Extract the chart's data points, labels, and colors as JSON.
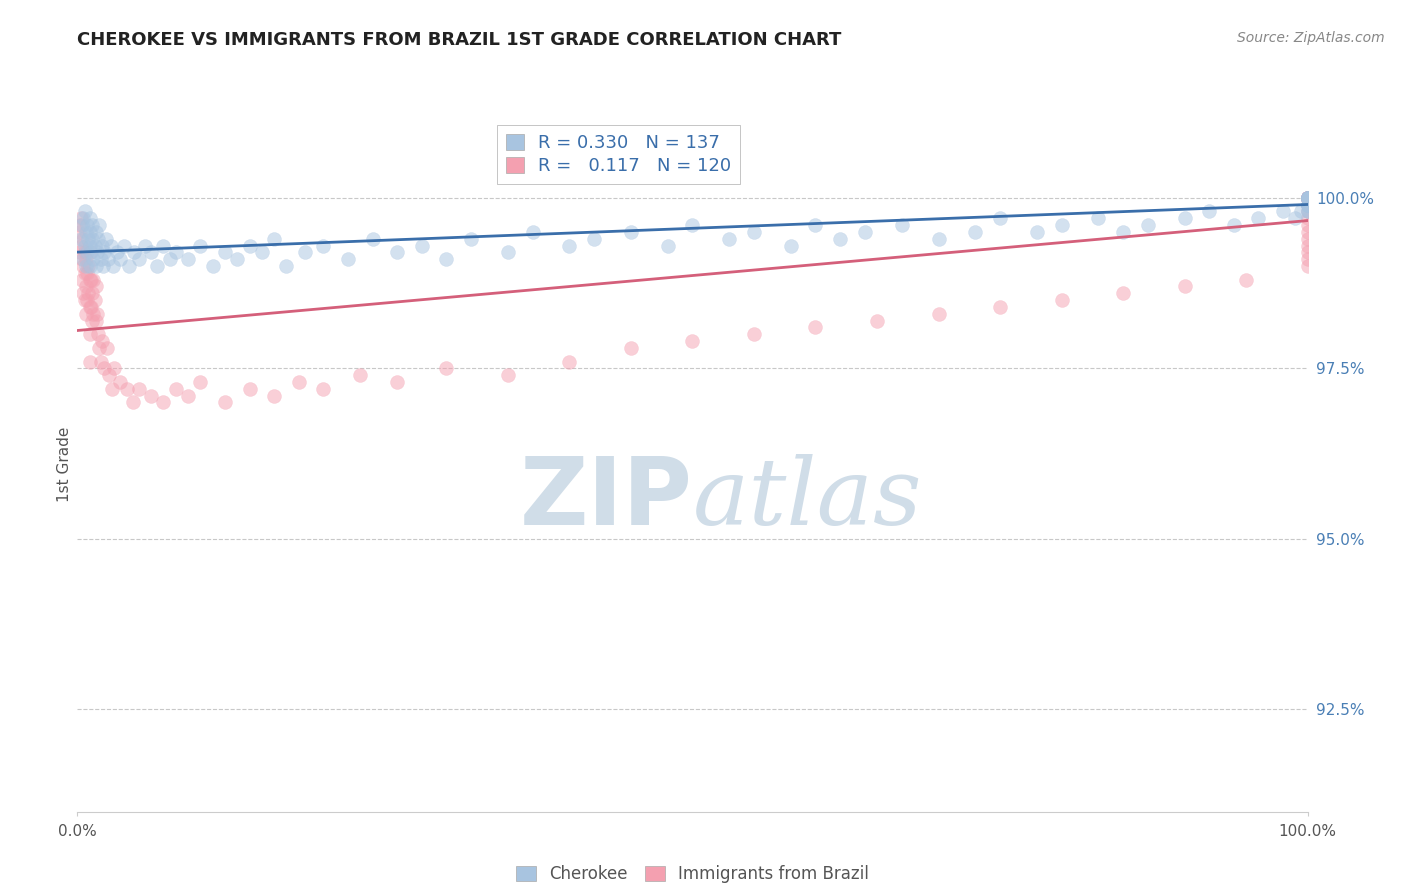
{
  "title": "CHEROKEE VS IMMIGRANTS FROM BRAZIL 1ST GRADE CORRELATION CHART",
  "source_text": "Source: ZipAtlas.com",
  "ylabel": "1st Grade",
  "y_ticks": [
    92.5,
    95.0,
    97.5,
    100.0
  ],
  "y_tick_labels": [
    "92.5%",
    "95.0%",
    "97.5%",
    "100.0%"
  ],
  "x_range": [
    0.0,
    100.0
  ],
  "y_range": [
    91.0,
    101.2
  ],
  "blue_scatter_color": "#a8c4e0",
  "pink_scatter_color": "#f4a0b0",
  "blue_line_color": "#3a6eaa",
  "pink_line_color": "#d45f7a",
  "watermark_zip": "ZIP",
  "watermark_atlas": "atlas",
  "watermark_color": "#d0dde8",
  "background_color": "#ffffff",
  "grid_color": "#c8c8c8",
  "title_color": "#222222",
  "source_color": "#888888",
  "tick_color": "#555555",
  "right_tick_color": "#4a7fb5",
  "marker_size": 100,
  "marker_alpha": 0.5,
  "R_blue": 0.33,
  "N_blue": 137,
  "R_pink": 0.117,
  "N_pink": 120,
  "blue_label": "Cherokee",
  "pink_label": "Immigrants from Brazil",
  "blue_x": [
    0.3,
    0.4,
    0.5,
    0.5,
    0.6,
    0.6,
    0.7,
    0.7,
    0.8,
    0.8,
    0.9,
    1.0,
    1.0,
    1.0,
    1.0,
    1.1,
    1.2,
    1.2,
    1.3,
    1.4,
    1.5,
    1.5,
    1.6,
    1.7,
    1.8,
    1.9,
    2.0,
    2.1,
    2.2,
    2.3,
    2.5,
    2.7,
    2.9,
    3.2,
    3.5,
    3.8,
    4.2,
    4.6,
    5.0,
    5.5,
    6.0,
    6.5,
    7.0,
    7.5,
    8.0,
    9.0,
    10.0,
    11.0,
    12.0,
    13.0,
    14.0,
    15.0,
    16.0,
    17.0,
    18.5,
    20.0,
    22.0,
    24.0,
    26.0,
    28.0,
    30.0,
    32.0,
    35.0,
    37.0,
    40.0,
    42.0,
    45.0,
    48.0,
    50.0,
    53.0,
    55.0,
    58.0,
    60.0,
    62.0,
    64.0,
    67.0,
    70.0,
    73.0,
    75.0,
    78.0,
    80.0,
    83.0,
    85.0,
    87.0,
    90.0,
    92.0,
    94.0,
    96.0,
    98.0,
    99.0,
    99.5,
    100.0,
    100.0,
    100.0,
    100.0,
    100.0,
    100.0,
    100.0,
    100.0,
    100.0,
    100.0,
    100.0,
    100.0,
    100.0,
    100.0,
    100.0,
    100.0,
    100.0,
    100.0,
    100.0,
    100.0,
    100.0,
    100.0,
    100.0,
    100.0,
    100.0,
    100.0,
    100.0,
    100.0,
    100.0,
    100.0,
    100.0,
    100.0,
    100.0,
    100.0,
    100.0,
    100.0,
    100.0,
    100.0,
    100.0,
    100.0,
    100.0,
    100.0,
    100.0,
    100.0,
    100.0,
    100.0
  ],
  "blue_y": [
    99.4,
    99.6,
    99.1,
    99.7,
    99.3,
    99.8,
    99.0,
    99.5,
    99.2,
    99.6,
    99.4,
    99.0,
    99.3,
    99.5,
    99.7,
    99.2,
    99.4,
    99.6,
    99.1,
    99.3,
    99.5,
    99.0,
    99.2,
    99.4,
    99.6,
    99.1,
    99.3,
    99.0,
    99.2,
    99.4,
    99.1,
    99.3,
    99.0,
    99.2,
    99.1,
    99.3,
    99.0,
    99.2,
    99.1,
    99.3,
    99.2,
    99.0,
    99.3,
    99.1,
    99.2,
    99.1,
    99.3,
    99.0,
    99.2,
    99.1,
    99.3,
    99.2,
    99.4,
    99.0,
    99.2,
    99.3,
    99.1,
    99.4,
    99.2,
    99.3,
    99.1,
    99.4,
    99.2,
    99.5,
    99.3,
    99.4,
    99.5,
    99.3,
    99.6,
    99.4,
    99.5,
    99.3,
    99.6,
    99.4,
    99.5,
    99.6,
    99.4,
    99.5,
    99.7,
    99.5,
    99.6,
    99.7,
    99.5,
    99.6,
    99.7,
    99.8,
    99.6,
    99.7,
    99.8,
    99.7,
    99.8,
    99.9,
    100.0,
    99.9,
    100.0,
    99.8,
    100.0,
    99.9,
    100.0,
    99.8,
    100.0,
    100.0,
    99.9,
    100.0,
    100.0,
    99.9,
    100.0,
    100.0,
    99.9,
    100.0,
    100.0,
    100.0,
    100.0,
    100.0,
    100.0,
    100.0,
    100.0,
    100.0,
    100.0,
    100.0,
    100.0,
    100.0,
    100.0,
    100.0,
    100.0,
    100.0,
    100.0,
    100.0,
    100.0,
    100.0,
    100.0,
    100.0,
    100.0,
    100.0,
    100.0,
    100.0,
    100.0
  ],
  "pink_x": [
    0.1,
    0.2,
    0.2,
    0.3,
    0.3,
    0.4,
    0.4,
    0.5,
    0.5,
    0.5,
    0.6,
    0.6,
    0.6,
    0.7,
    0.7,
    0.7,
    0.8,
    0.8,
    0.9,
    0.9,
    1.0,
    1.0,
    1.0,
    1.0,
    1.0,
    1.1,
    1.1,
    1.2,
    1.2,
    1.3,
    1.3,
    1.4,
    1.5,
    1.5,
    1.6,
    1.7,
    1.8,
    1.9,
    2.0,
    2.2,
    2.4,
    2.6,
    2.8,
    3.0,
    3.5,
    4.0,
    4.5,
    5.0,
    6.0,
    7.0,
    8.0,
    9.0,
    10.0,
    12.0,
    14.0,
    16.0,
    18.0,
    20.0,
    23.0,
    26.0,
    30.0,
    35.0,
    40.0,
    45.0,
    50.0,
    55.0,
    60.0,
    65.0,
    70.0,
    75.0,
    80.0,
    85.0,
    90.0,
    95.0,
    100.0,
    100.0,
    100.0,
    100.0,
    100.0,
    100.0,
    100.0,
    100.0,
    100.0,
    100.0,
    100.0,
    100.0,
    100.0,
    100.0,
    100.0,
    100.0,
    100.0,
    100.0,
    100.0,
    100.0,
    100.0,
    100.0,
    100.0,
    100.0,
    100.0,
    100.0,
    100.0,
    100.0,
    100.0,
    100.0,
    100.0,
    100.0,
    100.0,
    100.0,
    100.0,
    100.0,
    100.0,
    100.0,
    100.0,
    100.0,
    100.0,
    100.0,
    100.0,
    100.0,
    100.0,
    100.0
  ],
  "pink_y": [
    99.5,
    99.6,
    99.2,
    99.7,
    99.3,
    99.1,
    98.8,
    99.4,
    99.0,
    98.6,
    99.2,
    98.9,
    98.5,
    99.1,
    98.7,
    98.3,
    98.9,
    98.5,
    99.0,
    98.6,
    99.2,
    98.8,
    98.4,
    98.0,
    97.6,
    98.8,
    98.4,
    98.6,
    98.2,
    98.8,
    98.3,
    98.5,
    98.7,
    98.2,
    98.3,
    98.0,
    97.8,
    97.6,
    97.9,
    97.5,
    97.8,
    97.4,
    97.2,
    97.5,
    97.3,
    97.2,
    97.0,
    97.2,
    97.1,
    97.0,
    97.2,
    97.1,
    97.3,
    97.0,
    97.2,
    97.1,
    97.3,
    97.2,
    97.4,
    97.3,
    97.5,
    97.4,
    97.6,
    97.8,
    97.9,
    98.0,
    98.1,
    98.2,
    98.3,
    98.4,
    98.5,
    98.6,
    98.7,
    98.8,
    99.0,
    99.1,
    99.2,
    99.3,
    99.4,
    99.5,
    99.6,
    99.7,
    99.8,
    99.9,
    100.0,
    100.0,
    100.0,
    100.0,
    100.0,
    100.0,
    100.0,
    100.0,
    100.0,
    100.0,
    100.0,
    100.0,
    100.0,
    100.0,
    100.0,
    100.0,
    100.0,
    100.0,
    100.0,
    100.0,
    100.0,
    100.0,
    100.0,
    100.0,
    100.0,
    100.0,
    100.0,
    100.0,
    100.0,
    100.0,
    100.0,
    100.0,
    100.0,
    100.0,
    100.0,
    100.0
  ]
}
